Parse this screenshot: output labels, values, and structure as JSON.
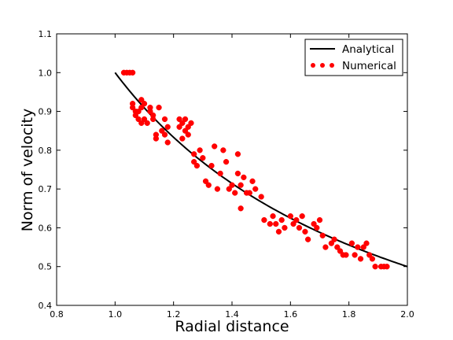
{
  "chart_data": {
    "type": "scatter",
    "xlabel": "Radial distance",
    "ylabel": "Norm of velocity",
    "xlim": [
      0.8,
      2.0
    ],
    "ylim": [
      0.4,
      1.1
    ],
    "xticks": [
      "0.8",
      "1.0",
      "1.2",
      "1.4",
      "1.6",
      "1.8",
      "2.0"
    ],
    "yticks": [
      "0.4",
      "0.5",
      "0.6",
      "0.7",
      "0.8",
      "0.9",
      "1.0",
      "1.1"
    ],
    "grid": false,
    "legend_position": "top-right",
    "series": [
      {
        "name": "Analytical",
        "kind": "line",
        "color": "#000000",
        "function": "1/x",
        "x_range": [
          1.0,
          2.0
        ]
      },
      {
        "name": "Numerical",
        "kind": "scatter",
        "color": "#ff0000",
        "points": [
          [
            1.03,
            1.0
          ],
          [
            1.04,
            1.0
          ],
          [
            1.05,
            1.0
          ],
          [
            1.06,
            1.0
          ],
          [
            1.06,
            0.92
          ],
          [
            1.06,
            0.91
          ],
          [
            1.07,
            0.9
          ],
          [
            1.07,
            0.89
          ],
          [
            1.08,
            0.88
          ],
          [
            1.08,
            0.9
          ],
          [
            1.09,
            0.87
          ],
          [
            1.09,
            0.93
          ],
          [
            1.09,
            0.91
          ],
          [
            1.1,
            0.92
          ],
          [
            1.1,
            0.88
          ],
          [
            1.11,
            0.87
          ],
          [
            1.12,
            0.91
          ],
          [
            1.12,
            0.9
          ],
          [
            1.13,
            0.89
          ],
          [
            1.13,
            0.88
          ],
          [
            1.14,
            0.84
          ],
          [
            1.14,
            0.83
          ],
          [
            1.15,
            0.91
          ],
          [
            1.16,
            0.85
          ],
          [
            1.17,
            0.88
          ],
          [
            1.17,
            0.84
          ],
          [
            1.18,
            0.86
          ],
          [
            1.18,
            0.82
          ],
          [
            1.22,
            0.88
          ],
          [
            1.22,
            0.86
          ],
          [
            1.23,
            0.87
          ],
          [
            1.23,
            0.83
          ],
          [
            1.24,
            0.88
          ],
          [
            1.24,
            0.85
          ],
          [
            1.25,
            0.86
          ],
          [
            1.25,
            0.84
          ],
          [
            1.26,
            0.87
          ],
          [
            1.27,
            0.79
          ],
          [
            1.27,
            0.77
          ],
          [
            1.28,
            0.76
          ],
          [
            1.29,
            0.8
          ],
          [
            1.3,
            0.78
          ],
          [
            1.31,
            0.72
          ],
          [
            1.32,
            0.71
          ],
          [
            1.33,
            0.76
          ],
          [
            1.34,
            0.81
          ],
          [
            1.35,
            0.7
          ],
          [
            1.36,
            0.74
          ],
          [
            1.37,
            0.8
          ],
          [
            1.38,
            0.77
          ],
          [
            1.39,
            0.7
          ],
          [
            1.4,
            0.71
          ],
          [
            1.41,
            0.69
          ],
          [
            1.42,
            0.74
          ],
          [
            1.42,
            0.79
          ],
          [
            1.43,
            0.65
          ],
          [
            1.43,
            0.71
          ],
          [
            1.44,
            0.73
          ],
          [
            1.45,
            0.69
          ],
          [
            1.46,
            0.69
          ],
          [
            1.47,
            0.72
          ],
          [
            1.48,
            0.7
          ],
          [
            1.5,
            0.68
          ],
          [
            1.51,
            0.62
          ],
          [
            1.53,
            0.61
          ],
          [
            1.54,
            0.63
          ],
          [
            1.55,
            0.61
          ],
          [
            1.56,
            0.59
          ],
          [
            1.57,
            0.62
          ],
          [
            1.58,
            0.6
          ],
          [
            1.6,
            0.63
          ],
          [
            1.61,
            0.61
          ],
          [
            1.62,
            0.62
          ],
          [
            1.63,
            0.6
          ],
          [
            1.64,
            0.63
          ],
          [
            1.65,
            0.59
          ],
          [
            1.66,
            0.57
          ],
          [
            1.68,
            0.61
          ],
          [
            1.69,
            0.6
          ],
          [
            1.7,
            0.62
          ],
          [
            1.71,
            0.58
          ],
          [
            1.72,
            0.55
          ],
          [
            1.74,
            0.56
          ],
          [
            1.75,
            0.57
          ],
          [
            1.76,
            0.55
          ],
          [
            1.77,
            0.54
          ],
          [
            1.78,
            0.53
          ],
          [
            1.79,
            0.53
          ],
          [
            1.81,
            0.56
          ],
          [
            1.82,
            0.53
          ],
          [
            1.83,
            0.55
          ],
          [
            1.84,
            0.52
          ],
          [
            1.85,
            0.55
          ],
          [
            1.86,
            0.56
          ],
          [
            1.87,
            0.53
          ],
          [
            1.88,
            0.52
          ],
          [
            1.89,
            0.5
          ],
          [
            1.91,
            0.5
          ],
          [
            1.92,
            0.5
          ],
          [
            1.93,
            0.5
          ]
        ]
      }
    ]
  }
}
